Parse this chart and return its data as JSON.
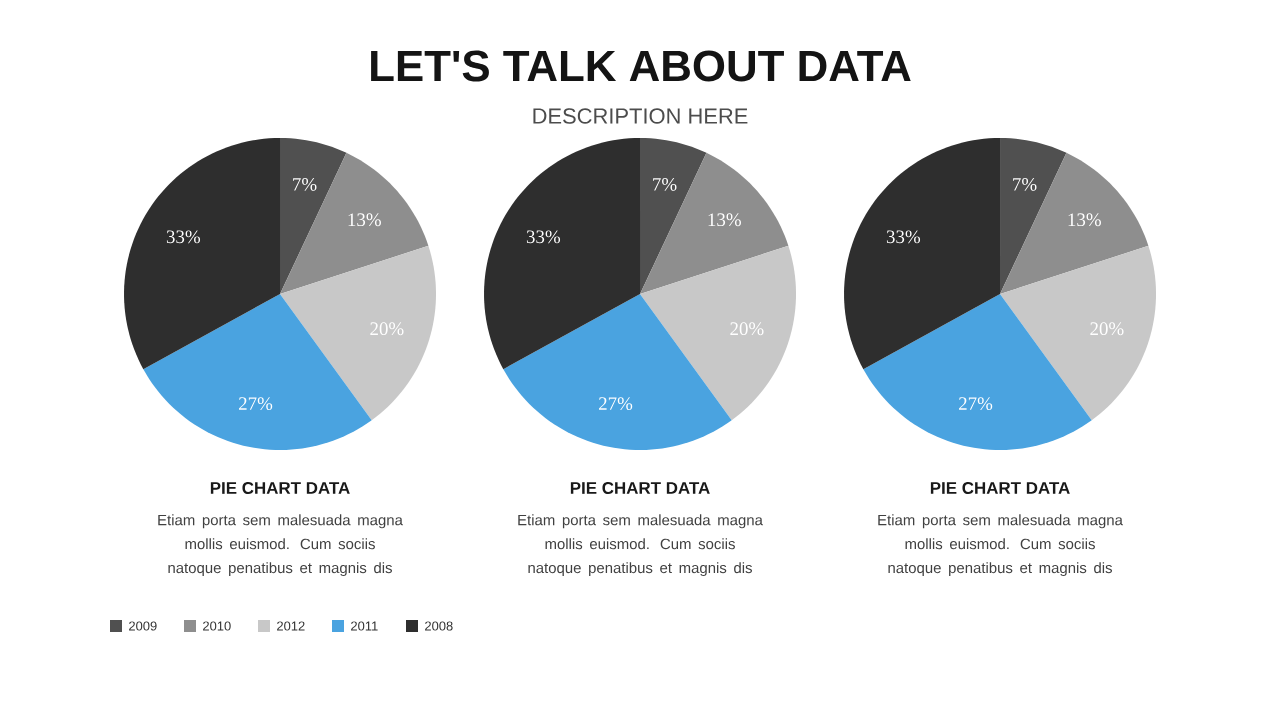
{
  "chart_data": [
    {
      "type": "other",
      "title": "LET'S TALK ABOUT DATA",
      "subtitle": "DESCRIPTION HERE"
    },
    {
      "type": "pie",
      "categories": [
        "2009",
        "2010",
        "2012",
        "2011",
        "2008"
      ],
      "values": [
        7,
        13,
        20,
        27,
        33
      ],
      "value_labels": [
        "7%",
        "13%",
        "20%",
        "27%",
        "33%"
      ],
      "colors": [
        "#505050",
        "#8e8e8e",
        "#c8c8c8",
        "#4aa3e0",
        "#2e2e2e"
      ],
      "legend": "bottom",
      "annotations": [
        "PIE CHART DATA",
        "Etiam porta sem malesuada magna mollis euismod. Cum sociis natoque penatibus et magnis dis"
      ]
    },
    {
      "type": "pie",
      "categories": [
        null,
        null,
        null,
        null,
        null
      ],
      "values": [
        7,
        13,
        20,
        27,
        33
      ],
      "value_labels": [
        "7%",
        "13%",
        "20%",
        "27%",
        "33%"
      ],
      "colors": [
        "#505050",
        "#8e8e8e",
        "#c8c8c8",
        "#4aa3e0",
        "#2e2e2e"
      ],
      "annotations": [
        "PIE CHART DATA",
        "Etiam porta sem malesuada magna mollis euismod. Cum sociis natoque penatibus et magnis dis"
      ]
    },
    {
      "type": "pie",
      "categories": [
        null,
        null,
        null,
        null,
        null
      ],
      "values": [
        7,
        13,
        20,
        27,
        33
      ],
      "value_labels": [
        "7%",
        "13%",
        "20%",
        "27%",
        "33%"
      ],
      "colors": [
        "#505050",
        "#8e8e8e",
        "#c8c8c8",
        "#4aa3e0",
        "#2e2e2e"
      ],
      "annotations": [
        "PIE CHART DATA",
        "Etiam porta sem malesuada magna mollis euismod. Cum sociis natoque penatibus et magnis dis"
      ]
    }
  ]
}
